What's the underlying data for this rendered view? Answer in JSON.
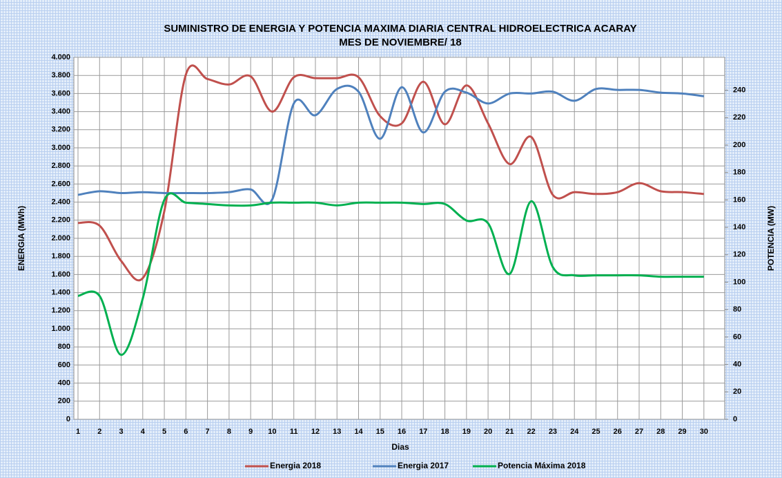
{
  "chart_data": {
    "type": "line",
    "title": "SUMINISTRO DE ENERGIA  Y POTENCIA MAXIMA DIARIA CENTRAL HIDROELECTRICA ACARAY",
    "subtitle": "MES  DE NOVIEMBRE/ 18",
    "x_label": "Dias",
    "y_label": "ENERGIA (MWh)",
    "y2_label": "POTENCIA (MW)",
    "categories": [
      "1",
      "2",
      "3",
      "4",
      "5",
      "6",
      "7",
      "8",
      "9",
      "10",
      "11",
      "12",
      "13",
      "14",
      "15",
      "16",
      "17",
      "18",
      "19",
      "20",
      "21",
      "22",
      "23",
      "24",
      "25",
      "26",
      "27",
      "28",
      "29",
      "30"
    ],
    "series": [
      {
        "name": "Energia 2018",
        "color": "#c0504d",
        "values": [
          2170,
          2140,
          1750,
          1560,
          2300,
          3810,
          3760,
          3700,
          3790,
          3400,
          3780,
          3770,
          3770,
          3780,
          3350,
          3270,
          3730,
          3260,
          3690,
          3270,
          2820,
          3120,
          2480,
          2510,
          2490,
          2510,
          2610,
          2520,
          2510,
          2490
        ]
      },
      {
        "name": "Energia 2017",
        "color": "#4f81bd",
        "values": [
          2480,
          2520,
          2500,
          2510,
          2500,
          2500,
          2500,
          2510,
          2540,
          2430,
          3490,
          3360,
          3650,
          3620,
          3100,
          3670,
          3170,
          3620,
          3610,
          3490,
          3600,
          3600,
          3620,
          3520,
          3650,
          3640,
          3640,
          3610,
          3600,
          3570
        ]
      },
      {
        "name": "Potencia Máxima 2018",
        "color": "#00b050",
        "axis": "y2",
        "values": [
          90,
          90,
          47,
          88,
          160,
          158,
          157,
          156,
          156,
          158,
          158,
          158,
          156,
          158,
          158,
          158,
          157,
          157,
          145,
          143,
          106,
          159,
          111,
          105,
          105,
          105,
          105,
          104,
          104,
          104
        ]
      }
    ],
    "ylim": [
      0,
      4000
    ],
    "yticks": [
      0,
      200,
      400,
      600,
      800,
      {
        "value": 1000,
        "label": "1.000"
      },
      {
        "value": 1200,
        "label": "1.200"
      },
      {
        "value": 1400,
        "label": "1.400"
      },
      {
        "value": 1600,
        "label": "1.600"
      },
      {
        "value": 1800,
        "label": "1.800"
      },
      {
        "value": 2000,
        "label": "2.000"
      },
      {
        "value": 2200,
        "label": "2.200"
      },
      {
        "value": 2400,
        "label": "2.400"
      },
      {
        "value": 2600,
        "label": "2.600"
      },
      {
        "value": 2800,
        "label": "2.800"
      },
      {
        "value": 3000,
        "label": "3.000"
      },
      {
        "value": 3200,
        "label": "3.200"
      },
      {
        "value": 3400,
        "label": "3.400"
      },
      {
        "value": 3600,
        "label": "3.600"
      },
      {
        "value": 3800,
        "label": "3.800"
      },
      {
        "value": 4000,
        "label": "4.000"
      }
    ],
    "y2lim": [
      0,
      264
    ],
    "y2ticks": [
      0,
      20,
      40,
      60,
      80,
      100,
      120,
      140,
      160,
      180,
      200,
      220,
      240
    ],
    "grid": true,
    "legend": "bottom"
  }
}
